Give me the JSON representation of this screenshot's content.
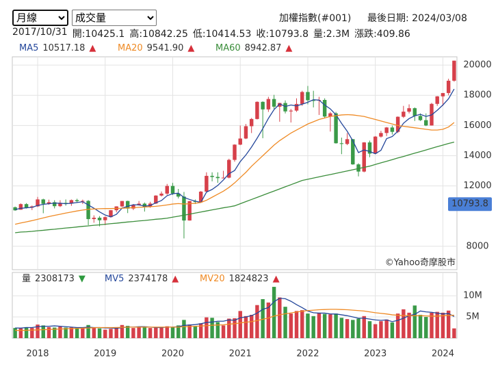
{
  "controls": {
    "period": "月線",
    "indicator": "成交量"
  },
  "header": {
    "title": "加權指數(#001)",
    "last_date": "最後日期: 2024/03/08",
    "info": [
      "2017/10/31",
      "開:10425.1",
      "高:10842.25",
      "低:10414.53",
      "收:10793.8",
      "量:2.3M",
      "漲跌:409.86"
    ]
  },
  "chart_data": [
    {
      "type": "candlestick",
      "up_color": "#d6404a",
      "down_color": "#3a9a48",
      "open": [
        10586,
        10425.1,
        10794,
        10560,
        10643,
        11104,
        10815,
        10919,
        10658,
        10875,
        10837,
        11057,
        10989,
        11006,
        9802,
        9889,
        9727,
        9932,
        10389,
        10641,
        11000,
        10498,
        10731,
        10824,
        10618,
        10830,
        11359,
        11489,
        11997,
        11495,
        11292,
        9708,
        10992,
        10943,
        11621,
        12665,
        12592,
        12516,
        12546,
        13723,
        14733,
        15138,
        15953,
        16431,
        17567,
        17068,
        17755,
        17247,
        17490,
        16935,
        16987,
        17428,
        18219,
        17674,
        17652,
        17693,
        16593,
        16807,
        14826,
        14778,
        15095,
        13425,
        12949,
        14880,
        14138,
        15265,
        15504,
        15869,
        15579,
        16579,
        16916,
        17146,
        16634,
        16354,
        16001,
        17433,
        17931,
        18151,
        18967
      ],
      "high": [
        10630,
        10842.25,
        10860,
        10700,
        11270,
        11150,
        11090,
        11050,
        11050,
        11100,
        11100,
        11150,
        11090,
        11060,
        10050,
        10000,
        9980,
        10400,
        10650,
        11000,
        11020,
        10800,
        11000,
        10900,
        10950,
        11380,
        11630,
        12130,
        12200,
        11800,
        11600,
        11000,
        11100,
        11660,
        12900,
        12900,
        12900,
        13000,
        13800,
        14760,
        16000,
        16100,
        16500,
        17600,
        17600,
        17900,
        18030,
        17500,
        17660,
        17100,
        17800,
        18300,
        18620,
        18300,
        17900,
        17800,
        16900,
        16900,
        15200,
        15500,
        15100,
        13500,
        14900,
        15000,
        15300,
        15650,
        15900,
        16000,
        16600,
        17300,
        17400,
        17200,
        16800,
        16800,
        17500,
        17950,
        18100,
        19100,
        20300
      ],
      "low": [
        10350,
        10414.53,
        10500,
        10400,
        10600,
        10190,
        10750,
        10510,
        10600,
        10690,
        10680,
        10910,
        10800,
        9400,
        9560,
        9320,
        9400,
        9900,
        10250,
        10600,
        10200,
        10400,
        10700,
        10300,
        10550,
        10800,
        11300,
        11400,
        11400,
        11170,
        8520,
        9700,
        10800,
        10900,
        11600,
        12300,
        12200,
        12500,
        12500,
        13600,
        14700,
        15100,
        15500,
        16400,
        15160,
        16900,
        17100,
        16250,
        16800,
        16200,
        16900,
        17300,
        17400,
        17200,
        16700,
        16500,
        15600,
        14800,
        14100,
        14700,
        13400,
        12630,
        12900,
        13900,
        14100,
        15200,
        15300,
        15400,
        15500,
        16500,
        16800,
        16300,
        16300,
        15960,
        16000,
        17300,
        17300,
        18000,
        18900
      ],
      "close": [
        10383,
        10793.8,
        10560,
        10643,
        11104,
        10815,
        10919,
        10658,
        10875,
        10837,
        11057,
        10989,
        11006,
        9802,
        9889,
        9727,
        9932,
        10389,
        10641,
        11000,
        10498,
        10731,
        10824,
        10618,
        10830,
        11359,
        11489,
        11997,
        11495,
        11292,
        9708,
        10992,
        10943,
        11621,
        12665,
        12592,
        12516,
        12546,
        13723,
        14733,
        15138,
        15953,
        16431,
        17567,
        17068,
        17755,
        17247,
        17490,
        16935,
        16987,
        17428,
        18219,
        17674,
        17652,
        17693,
        16593,
        16807,
        14826,
        14778,
        15095,
        13425,
        12949,
        14880,
        14138,
        15265,
        15504,
        15869,
        15579,
        16579,
        16916,
        17146,
        16634,
        16354,
        16001,
        17433,
        17931,
        18151,
        18967,
        20294
      ],
      "series": [
        {
          "name": "MA5",
          "color": "#24479b",
          "legend_value": 10517.18,
          "legend_arrow": "▲",
          "legend_arrow_color": "#d6303a",
          "values": [
            10430,
            10517.18,
            10550,
            10580,
            10700,
            10780,
            10820,
            10860,
            10850,
            10820,
            10850,
            10900,
            10950,
            10740,
            10520,
            10280,
            10070,
            9950,
            10120,
            10530,
            10650,
            10750,
            10740,
            10660,
            10700,
            10880,
            11030,
            11350,
            11480,
            11520,
            11240,
            11100,
            10990,
            10910,
            11590,
            11765,
            12030,
            12390,
            12810,
            13020,
            13610,
            14050,
            14570,
            15160,
            15790,
            16470,
            17050,
            17430,
            17260,
            17360,
            17300,
            17410,
            17540,
            17710,
            17680,
            17360,
            17100,
            16710,
            16140,
            15620,
            14990,
            14210,
            14380,
            14280,
            14130,
            14360,
            15130,
            15270,
            15620,
            16150,
            16460,
            16640,
            16740,
            16600,
            16700,
            17010,
            17360,
            17770,
            18415
          ]
        },
        {
          "name": "MA20",
          "color": "#ef8a24",
          "legend_value": 9541.9,
          "legend_value_label": "9541.90",
          "legend_arrow": "▲",
          "legend_arrow_color": "#d6303a",
          "values": [
            9460,
            9541.9,
            9620,
            9700,
            9790,
            9880,
            9970,
            10050,
            10120,
            10200,
            10270,
            10340,
            10400,
            10450,
            10470,
            10490,
            10500,
            10500,
            10510,
            10520,
            10540,
            10560,
            10580,
            10600,
            10620,
            10650,
            10690,
            10740,
            10800,
            10830,
            10800,
            10820,
            10850,
            10900,
            11050,
            11250,
            11450,
            11650,
            11900,
            12200,
            12550,
            12900,
            13300,
            13650,
            14000,
            14350,
            14700,
            15000,
            15250,
            15500,
            15700,
            15900,
            16100,
            16250,
            16400,
            16500,
            16600,
            16650,
            16700,
            16720,
            16700,
            16650,
            16600,
            16500,
            16400,
            16300,
            16200,
            16100,
            16000,
            15950,
            15900,
            15850,
            15800,
            15750,
            15700,
            15700,
            15750,
            15900,
            16200
          ]
        },
        {
          "name": "MA60",
          "color": "#3a8d3a",
          "legend_value": 8942.87,
          "legend_arrow": "▲",
          "legend_arrow_color": "#d6303a",
          "values": [
            8900,
            8942.87,
            8960,
            8990,
            9030,
            9060,
            9100,
            9130,
            9170,
            9210,
            9240,
            9280,
            9320,
            9350,
            9390,
            9420,
            9460,
            9500,
            9530,
            9570,
            9610,
            9640,
            9680,
            9710,
            9750,
            9790,
            9820,
            9860,
            9930,
            9990,
            10060,
            10130,
            10200,
            10270,
            10340,
            10410,
            10480,
            10550,
            10610,
            10680,
            10820,
            10960,
            11100,
            11240,
            11380,
            11520,
            11660,
            11800,
            11940,
            12080,
            12220,
            12360,
            12440,
            12520,
            12600,
            12680,
            12750,
            12830,
            12910,
            12990,
            13070,
            13150,
            13230,
            13310,
            13420,
            13530,
            13630,
            13740,
            13850,
            13950,
            14060,
            14170,
            14270,
            14380,
            14490,
            14600,
            14700,
            14810,
            14900
          ]
        }
      ],
      "ylim": [
        6450,
        20550
      ],
      "yticks": [
        8000,
        12000,
        14000,
        16000,
        18000,
        20000
      ],
      "grid": true,
      "last_price": 10793.8,
      "watermark": "©Yahoo奇摩股市"
    },
    {
      "type": "bar",
      "name": "量",
      "legend_value": 2308173,
      "legend_arrow": "▼",
      "legend_arrow_color": "#2e9a3e",
      "values": [
        2400000,
        2308173,
        2600000,
        2400000,
        3200000,
        3000000,
        2600000,
        2500000,
        2700000,
        2500000,
        2500000,
        2400000,
        2300000,
        3100000,
        2400000,
        2300000,
        2000000,
        2200000,
        2600000,
        3100000,
        2900000,
        2400000,
        2500000,
        2600000,
        2400000,
        2600000,
        2600000,
        2800000,
        2600000,
        3000000,
        4300000,
        3200000,
        2800000,
        3500000,
        4900000,
        4800000,
        3800000,
        3000000,
        4600000,
        4700000,
        6400000,
        5200000,
        5500000,
        7800000,
        9200000,
        8400000,
        12100000,
        9600000,
        7400000,
        5800000,
        6400000,
        6600000,
        5800000,
        5200000,
        6000000,
        5700000,
        5600000,
        5800000,
        4800000,
        4500000,
        4300000,
        4600000,
        5200000,
        4000000,
        3300000,
        4000000,
        4400000,
        3700000,
        5800000,
        6800000,
        6000000,
        7700000,
        5500000,
        5000000,
        6000000,
        6200000,
        6000000,
        6500000,
        2300000
      ],
      "series": [
        {
          "name": "MV5",
          "color": "#24479b",
          "legend_value": 2374178,
          "legend_arrow": "▲",
          "legend_arrow_color": "#d6303a",
          "values": [
            2400000,
            2374178,
            2500000,
            2500000,
            2700000,
            2800000,
            2800000,
            2900000,
            2800000,
            2700000,
            2600000,
            2500000,
            2500000,
            2600000,
            2500000,
            2500000,
            2400000,
            2400000,
            2300000,
            2500000,
            2600000,
            2600000,
            2700000,
            2700000,
            2600000,
            2500000,
            2500000,
            2600000,
            2600000,
            2700000,
            3000000,
            3100000,
            3200000,
            3400000,
            3700000,
            3800000,
            4000000,
            4000000,
            4300000,
            4200000,
            4800000,
            5000000,
            5300000,
            5900000,
            6800000,
            7200000,
            8600000,
            9400000,
            9300000,
            8700000,
            7900000,
            7200000,
            6400000,
            6000000,
            5900000,
            5900000,
            5700000,
            5700000,
            5500000,
            5300000,
            5000000,
            4700000,
            4700000,
            4500000,
            4300000,
            4200000,
            4300000,
            3900000,
            4200000,
            4700000,
            5300000,
            5600000,
            6400000,
            6200000,
            6100000,
            5900000,
            5700000,
            5800000,
            5100000
          ]
        },
        {
          "name": "MV20",
          "color": "#ef8a24",
          "legend_value": 1824823,
          "legend_arrow": "▲",
          "legend_arrow_color": "#d6303a",
          "values": [
            1840000,
            1824823,
            1850000,
            1900000,
            1950000,
            2000000,
            2050000,
            2100000,
            2150000,
            2200000,
            2250000,
            2300000,
            2350000,
            2400000,
            2450000,
            2500000,
            2500000,
            2500000,
            2500000,
            2550000,
            2600000,
            2600000,
            2600000,
            2600000,
            2600000,
            2600000,
            2600000,
            2600000,
            2600000,
            2600000,
            2700000,
            2750000,
            2800000,
            2850000,
            2950000,
            3050000,
            3100000,
            3150000,
            3300000,
            3400000,
            3600000,
            3750000,
            3900000,
            4150000,
            4450000,
            4750000,
            5200000,
            5500000,
            5750000,
            5950000,
            6150000,
            6350000,
            6500000,
            6600000,
            6700000,
            6750000,
            6800000,
            6800000,
            6750000,
            6700000,
            6600000,
            6500000,
            6400000,
            6200000,
            6000000,
            5850000,
            5700000,
            5500000,
            5400000,
            5350000,
            5300000,
            5300000,
            5300000,
            5250000,
            5200000,
            5200000,
            5300000,
            5400000,
            5400000
          ]
        }
      ],
      "ylim": [
        0,
        15500000
      ],
      "yticks": [
        {
          "value": 5000000,
          "label": "5M"
        },
        {
          "value": 10000000,
          "label": "10M"
        }
      ],
      "xticks": [
        {
          "value": 4,
          "label": "2018"
        },
        {
          "value": 16,
          "label": "2019"
        },
        {
          "value": 28,
          "label": "2020"
        },
        {
          "value": 40,
          "label": "2021"
        },
        {
          "value": 52,
          "label": "2022"
        },
        {
          "value": 64,
          "label": "2023"
        },
        {
          "value": 76,
          "label": "2024"
        }
      ],
      "grid": true
    }
  ]
}
